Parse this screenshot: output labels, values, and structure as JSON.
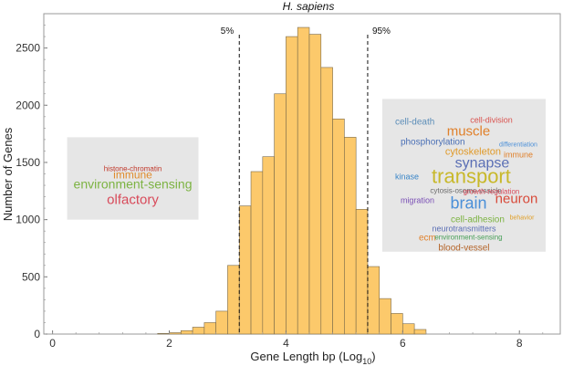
{
  "chart_data": {
    "type": "bar",
    "title": "H. sapiens",
    "xlabel": "Gene Length bp (Log",
    "xlabel_sub": "10",
    "xlabel_close": ")",
    "ylabel": "Number of Genes",
    "xlim": [
      -0.15,
      8.7
    ],
    "ylim": [
      0,
      2800
    ],
    "xticks": [
      0,
      2,
      4,
      6,
      8
    ],
    "yticks": [
      0,
      500,
      1000,
      1500,
      2000,
      2500
    ],
    "bin_width": 0.2,
    "bins": [
      {
        "x0": 1.8,
        "count": 5
      },
      {
        "x0": 2.0,
        "count": 12
      },
      {
        "x0": 2.2,
        "count": 30
      },
      {
        "x0": 2.4,
        "count": 60
      },
      {
        "x0": 2.6,
        "count": 100
      },
      {
        "x0": 2.8,
        "count": 200
      },
      {
        "x0": 3.0,
        "count": 600
      },
      {
        "x0": 3.2,
        "count": 1120
      },
      {
        "x0": 3.4,
        "count": 1420
      },
      {
        "x0": 3.6,
        "count": 1550
      },
      {
        "x0": 3.8,
        "count": 2100
      },
      {
        "x0": 4.0,
        "count": 2600
      },
      {
        "x0": 4.2,
        "count": 2680
      },
      {
        "x0": 4.4,
        "count": 2620
      },
      {
        "x0": 4.6,
        "count": 2330
      },
      {
        "x0": 4.8,
        "count": 1880
      },
      {
        "x0": 5.0,
        "count": 1720
      },
      {
        "x0": 5.2,
        "count": 1090
      },
      {
        "x0": 5.4,
        "count": 590
      },
      {
        "x0": 5.6,
        "count": 310
      },
      {
        "x0": 5.8,
        "count": 180
      },
      {
        "x0": 6.0,
        "count": 90
      },
      {
        "x0": 6.2,
        "count": 40
      }
    ],
    "bar_color": "#fcc96b",
    "bar_stroke": "#7a6a4a",
    "percentile_lines": [
      {
        "label": "5%",
        "x": 3.2
      },
      {
        "label": "95%",
        "x": 5.4
      }
    ],
    "wordclouds": {
      "left": {
        "box": {
          "x0": 0.25,
          "x1": 2.5,
          "y0": 1000,
          "y1": 1720
        },
        "words": [
          {
            "text": "environment-sensing",
            "color": "#7cb342",
            "size": 14
          },
          {
            "text": "olfactory",
            "color": "#d84a5a",
            "size": 15
          },
          {
            "text": "immune",
            "color": "#e08a2a",
            "size": 12
          },
          {
            "text": "histone-chromatin",
            "color": "#c0392b",
            "size": 8
          }
        ]
      },
      "right": {
        "box": {
          "x0": 5.65,
          "x1": 8.45,
          "y0": 720,
          "y1": 2055
        },
        "words": [
          {
            "text": "cell-death",
            "color": "#5b8db8",
            "size": 10
          },
          {
            "text": "muscle",
            "color": "#e0802a",
            "size": 15
          },
          {
            "text": "cell-division",
            "color": "#d9534f",
            "size": 9
          },
          {
            "text": "phosphorylation",
            "color": "#4a6fb5",
            "size": 10
          },
          {
            "text": "cytoskeleton",
            "color": "#e09a2a",
            "size": 11
          },
          {
            "text": "synapse",
            "color": "#5b6fb5",
            "size": 16
          },
          {
            "text": "transport",
            "color": "#c8b82a",
            "size": 22
          },
          {
            "text": "kinase",
            "color": "#3a86c8",
            "size": 9
          },
          {
            "text": "cytosis-osome-vesicle",
            "color": "#6a6a6a",
            "size": 8
          },
          {
            "text": "migration",
            "color": "#7a4fb5",
            "size": 9
          },
          {
            "text": "brain",
            "color": "#4a8fd8",
            "size": 18
          },
          {
            "text": "neuron",
            "color": "#d84a3a",
            "size": 15
          },
          {
            "text": "cell-adhesion",
            "color": "#7cb342",
            "size": 10
          },
          {
            "text": "neurotransmitters",
            "color": "#5b6fb5",
            "size": 9
          },
          {
            "text": "ecm",
            "color": "#e0802a",
            "size": 10
          },
          {
            "text": "environment-sensing",
            "color": "#4aa05a",
            "size": 8
          },
          {
            "text": "blood-vessel",
            "color": "#b5652a",
            "size": 10
          },
          {
            "text": "growth-regulation",
            "color": "#d84a5a",
            "size": 8
          },
          {
            "text": "differentiation",
            "color": "#4a8fd8",
            "size": 7
          },
          {
            "text": "immune",
            "color": "#e0802a",
            "size": 9
          },
          {
            "text": "behavior",
            "color": "#e0a02a",
            "size": 7
          }
        ]
      }
    }
  }
}
